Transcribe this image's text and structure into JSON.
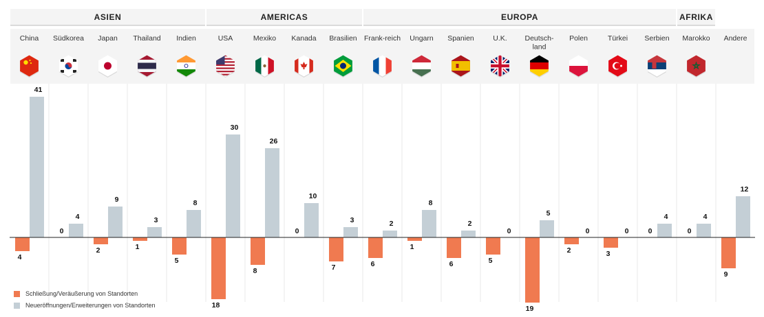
{
  "chart_data": {
    "type": "bar",
    "colors": {
      "closures": "#f07a50",
      "openings": "#c4cfd6",
      "band": "#f4f4f4",
      "divider": "#e8e8e8"
    },
    "regions": [
      {
        "name": "ASIEN",
        "countries": [
          0,
          4
        ]
      },
      {
        "name": "AMERICAS",
        "countries": [
          5,
          8
        ]
      },
      {
        "name": "EUROPA",
        "countries": [
          9,
          16
        ]
      },
      {
        "name": "AFRIKA",
        "countries": [
          17,
          17
        ]
      }
    ],
    "categories": [
      "China",
      "Südkorea",
      "Japan",
      "Thailand",
      "Indien",
      "USA",
      "Mexiko",
      "Kanada",
      "Brasilien",
      "Frank-reich",
      "Ungarn",
      "Spanien",
      "U.K.",
      "Deutsch-land",
      "Polen",
      "Türkei",
      "Serbien",
      "Marokko",
      "Andere"
    ],
    "flags": [
      "china-flag",
      "south-korea-flag",
      "japan-flag",
      "thailand-flag",
      "india-flag",
      "usa-flag",
      "mexico-flag",
      "canada-flag",
      "brazil-flag",
      "france-flag",
      "hungary-flag",
      "spain-flag",
      "uk-flag",
      "germany-flag",
      "poland-flag",
      "turkey-flag",
      "serbia-flag",
      "morocco-flag",
      null
    ],
    "series": [
      {
        "name": "Schließung/Veräußerung von Standorten",
        "values": [
          4,
          0,
          2,
          1,
          5,
          18,
          8,
          0,
          7,
          6,
          1,
          6,
          5,
          19,
          2,
          3,
          0,
          0,
          9
        ]
      },
      {
        "name": "Neueröffnungen/Erweiterungen von Standorten",
        "values": [
          41,
          4,
          9,
          3,
          8,
          30,
          26,
          10,
          3,
          2,
          8,
          2,
          0,
          5,
          0,
          0,
          4,
          4,
          12
        ]
      }
    ]
  }
}
